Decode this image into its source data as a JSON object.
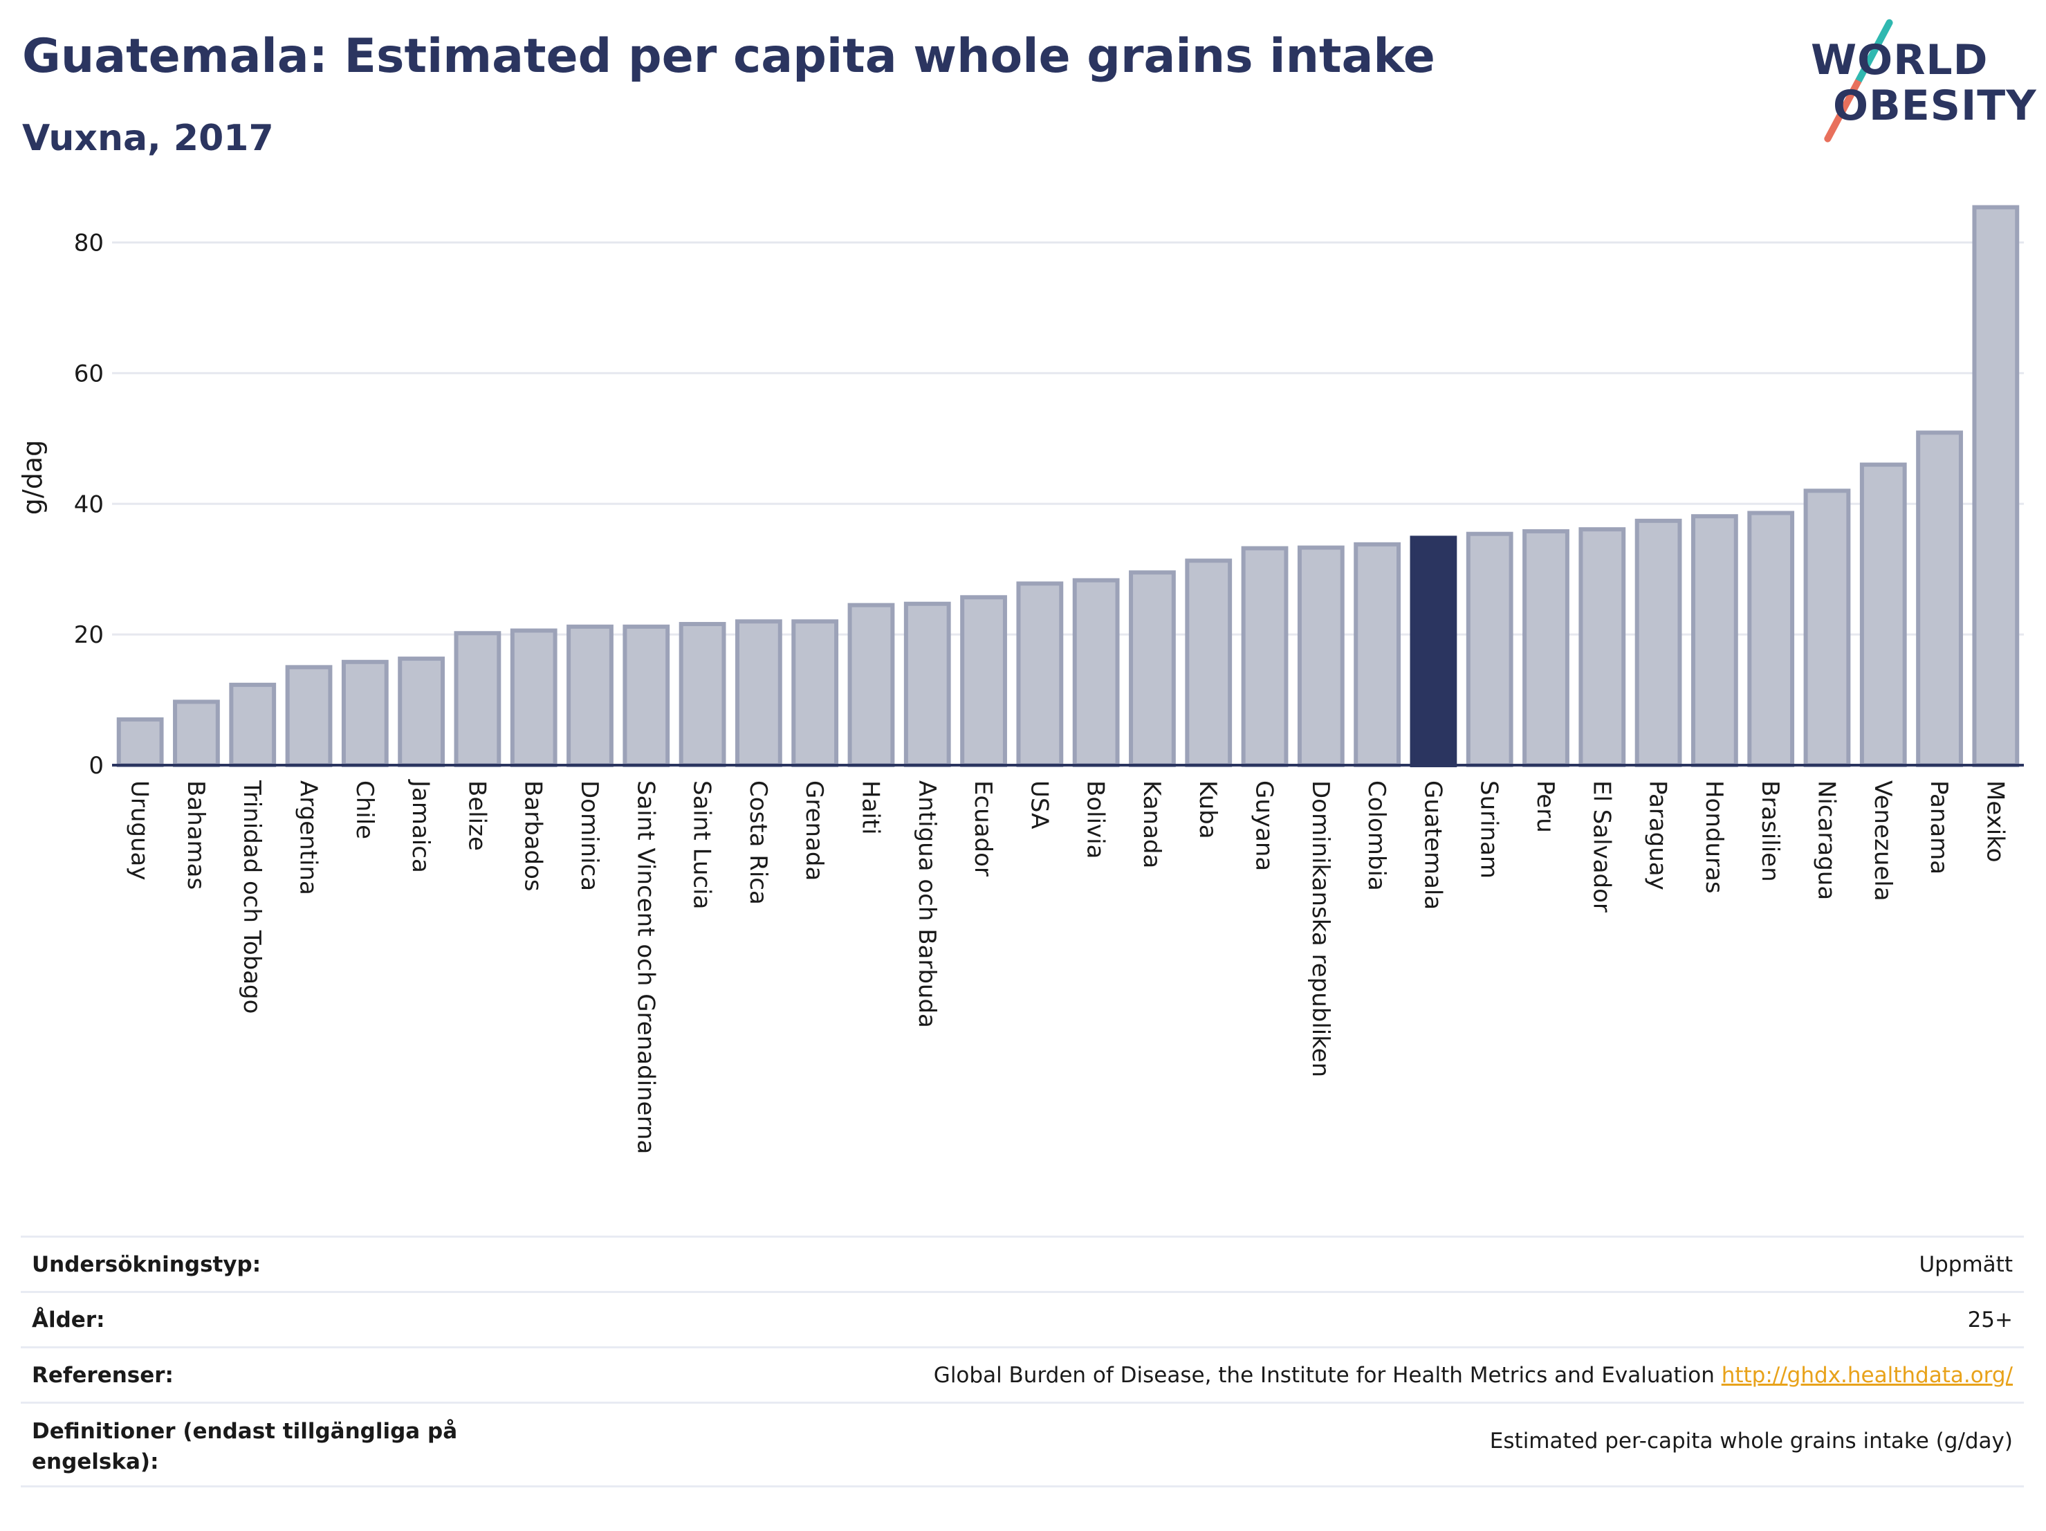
{
  "header": {
    "title": "Guatemala: Estimated per capita whole grains intake",
    "subtitle": "Vuxna, 2017"
  },
  "logo": {
    "line1": "WORLD",
    "line2": "OBESITY"
  },
  "chart_data": {
    "type": "bar",
    "ylabel": "g/dag",
    "xlabel": "",
    "ylim": [
      0,
      88
    ],
    "yticks": [
      0,
      20,
      40,
      60,
      80
    ],
    "grid": true,
    "highlight": "Guatemala",
    "colors": {
      "bar": "#bec2cf",
      "bar_edge": "#9ca2b8",
      "highlight": "#2b3560"
    },
    "categories": [
      "Uruguay",
      "Bahamas",
      "Trinidad och Tobago",
      "Argentina",
      "Chile",
      "Jamaica",
      "Belize",
      "Barbados",
      "Dominica",
      "Saint Vincent och Grenadinerna",
      "Saint Lucia",
      "Costa Rica",
      "Grenada",
      "Haiti",
      "Antigua och Barbuda",
      "Ecuador",
      "USA",
      "Bolivia",
      "Kanada",
      "Kuba",
      "Guyana",
      "Dominikanska republiken",
      "Colombia",
      "Guatemala",
      "Surinam",
      "Peru",
      "El Salvador",
      "Paraguay",
      "Honduras",
      "Brasilien",
      "Nicaragua",
      "Venezuela",
      "Panama",
      "Mexiko"
    ],
    "values": [
      7.0,
      9.7,
      12.3,
      15.0,
      15.8,
      16.3,
      20.2,
      20.6,
      21.2,
      21.2,
      21.6,
      22.0,
      22.0,
      24.5,
      24.7,
      25.7,
      27.8,
      28.3,
      29.5,
      31.3,
      33.2,
      33.3,
      33.8,
      34.8,
      35.4,
      35.8,
      36.1,
      37.4,
      38.1,
      38.6,
      42.0,
      46.0,
      50.9,
      85.4
    ]
  },
  "footer": {
    "rows": [
      {
        "label": "Undersökningstyp:",
        "value": "Uppmätt"
      },
      {
        "label": "Ålder:",
        "value": "25+"
      },
      {
        "label": "Referenser:",
        "value": "Global Burden of Disease, the Institute for Health Metrics and Evaluation",
        "link": "http://ghdx.healthdata.org/"
      },
      {
        "label": "Definitioner (endast tillgängliga på engelska):",
        "value": "Estimated per-capita whole grains intake (g/day)"
      }
    ]
  }
}
